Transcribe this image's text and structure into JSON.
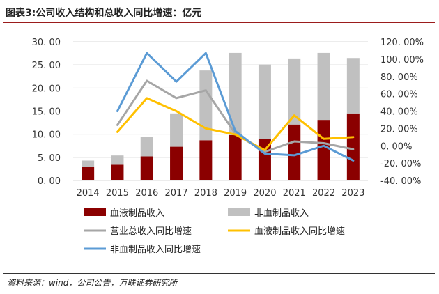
{
  "header": {
    "title": "图表3:公司收入结构和总收入同比增速：亿元"
  },
  "footer": {
    "source": "资料来源：wind，公司公告，万联证券研究所"
  },
  "chart_data": {
    "type": "bar",
    "categories": [
      "2014",
      "2015",
      "2016",
      "2017",
      "2018",
      "2019",
      "2020",
      "2021",
      "2022",
      "2023"
    ],
    "stacked": true,
    "series": [
      {
        "name": "血液制品收入",
        "type": "bar",
        "axis": "left",
        "color": "#8b0000",
        "values": [
          2.9,
          3.4,
          5.2,
          7.3,
          8.7,
          9.8,
          8.9,
          12.1,
          13.1,
          14.5
        ]
      },
      {
        "name": "非血制品收入",
        "type": "bar",
        "axis": "left",
        "color": "#c0c0c0",
        "values": [
          1.4,
          2.0,
          4.2,
          7.2,
          15.1,
          17.8,
          16.2,
          14.3,
          14.5,
          12.0
        ]
      },
      {
        "name": "营业总收入同比增速",
        "type": "line",
        "axis": "right",
        "color": "#a6a6a6",
        "values": [
          null,
          24,
          75,
          55,
          64,
          14,
          -7,
          5,
          3,
          -4
        ]
      },
      {
        "name": "血液制品收入同比增速",
        "type": "line",
        "axis": "right",
        "color": "#ffc000",
        "values": [
          null,
          16,
          55,
          40,
          20,
          13,
          -5,
          35,
          8,
          10
        ]
      },
      {
        "name": "非血制品收入同比增速",
        "type": "line",
        "axis": "right",
        "color": "#5b9bd5",
        "values": [
          null,
          40,
          107,
          74,
          107,
          17,
          -9,
          -11,
          0,
          -17
        ]
      }
    ],
    "ylim_left": [
      0,
      30
    ],
    "yticks_left": [
      "30. 00",
      "25. 00",
      "20. 00",
      "15. 00",
      "10. 00",
      "5. 00",
      "0. 00"
    ],
    "ylim_right": [
      -40,
      120
    ],
    "yticks_right": [
      "120. 00%",
      "100. 00%",
      "80. 00%",
      "60. 00%",
      "40. 00%",
      "20. 00%",
      "0. 00%",
      "-20. 00%",
      "-40. 00%"
    ],
    "grid": true,
    "legend_position": "bottom"
  }
}
